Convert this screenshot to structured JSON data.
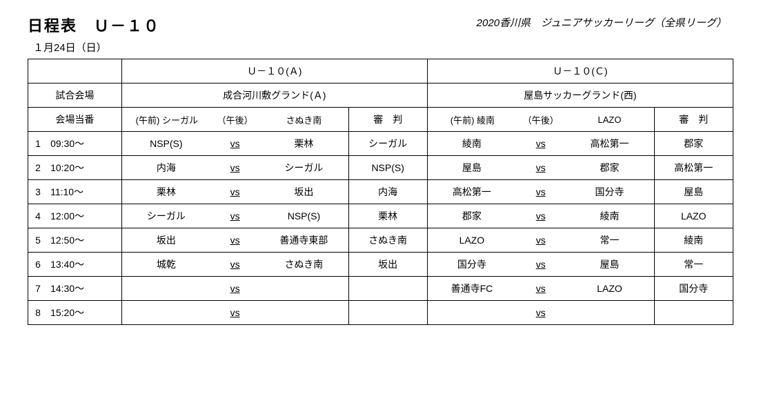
{
  "header": {
    "title": "日程表　Ｕ－１０",
    "subtitle": "2020香川県　ジュニアサッカーリーグ（全県リーグ）",
    "date": "１月24日（日）"
  },
  "groups": {
    "a": {
      "label": "Ｕ－１０(Ａ)",
      "venue": "成合河川敷グランド(Ａ)"
    },
    "c": {
      "label": "Ｕ－１０(Ｃ)",
      "venue": "屋島サッカーグランド(西)"
    }
  },
  "labels": {
    "venue_row": "試合会場",
    "duty_row": "会場当番",
    "am": "(午前)",
    "pm": "（午後）",
    "referee": "審　判",
    "vs": "vs"
  },
  "duty": {
    "a_am": "シーガル",
    "a_pm": "さぬき南",
    "c_am": "綾南",
    "c_pm": "LAZO"
  },
  "rows": [
    {
      "n": "1",
      "time": "09:30～",
      "a_home": "NSP(S)",
      "a_away": "栗林",
      "a_ref": "シーガル",
      "c_home": "綾南",
      "c_away": "高松第一",
      "c_ref": "郡家"
    },
    {
      "n": "2",
      "time": "10:20～",
      "a_home": "内海",
      "a_away": "シーガル",
      "a_ref": "NSP(S)",
      "c_home": "屋島",
      "c_away": "郡家",
      "c_ref": "高松第一"
    },
    {
      "n": "3",
      "time": "11:10～",
      "a_home": "栗林",
      "a_away": "坂出",
      "a_ref": "内海",
      "c_home": "高松第一",
      "c_away": "国分寺",
      "c_ref": "屋島"
    },
    {
      "n": "4",
      "time": "12:00～",
      "a_home": "シーガル",
      "a_away": "NSP(S)",
      "a_ref": "栗林",
      "c_home": "郡家",
      "c_away": "綾南",
      "c_ref": "LAZO"
    },
    {
      "n": "5",
      "time": "12:50～",
      "a_home": "坂出",
      "a_away": "善通寺東部",
      "a_ref": "さぬき南",
      "c_home": "LAZO",
      "c_away": "常一",
      "c_ref": "綾南"
    },
    {
      "n": "6",
      "time": "13:40～",
      "a_home": "城乾",
      "a_away": "さぬき南",
      "a_ref": "坂出",
      "c_home": "国分寺",
      "c_away": "屋島",
      "c_ref": "常一"
    },
    {
      "n": "7",
      "time": "14:30～",
      "a_home": "",
      "a_away": "",
      "a_ref": "",
      "c_home": "善通寺FC",
      "c_away": "LAZO",
      "c_ref": "国分寺"
    },
    {
      "n": "8",
      "time": "15:20～",
      "a_home": "",
      "a_away": "",
      "a_ref": "",
      "c_home": "",
      "c_away": "",
      "c_ref": ""
    }
  ],
  "style": {
    "border_color": "#000000",
    "background": "#ffffff",
    "title_fontsize": 22,
    "body_fontsize": 14
  }
}
